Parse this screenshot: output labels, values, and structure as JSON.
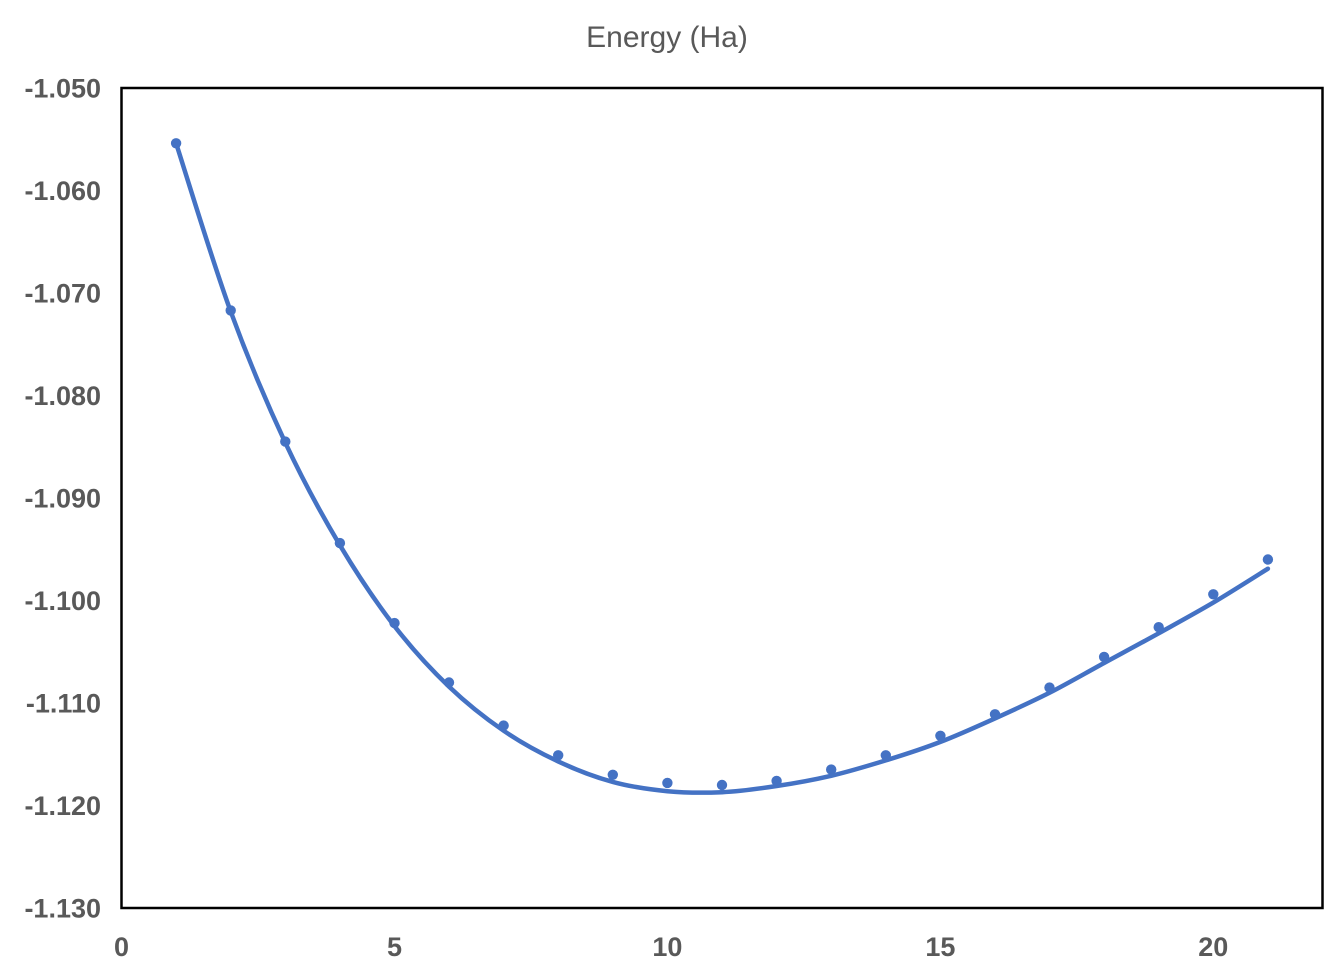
{
  "title": "Energy (Ha)",
  "chart_data": {
    "type": "scatter",
    "title": "Energy (Ha)",
    "xlabel": "",
    "ylabel": "",
    "xlim": [
      0,
      22
    ],
    "ylim": [
      -1.13,
      -1.05
    ],
    "x_ticks": [
      0,
      5,
      10,
      15,
      20
    ],
    "x_tick_labels": [
      "0",
      "5",
      "10",
      "15",
      "20"
    ],
    "y_ticks": [
      -1.05,
      -1.06,
      -1.07,
      -1.08,
      -1.09,
      -1.1,
      -1.11,
      -1.12,
      -1.13
    ],
    "y_tick_labels": [
      "-1.050",
      "-1.060",
      "-1.070",
      "-1.080",
      "-1.090",
      "-1.100",
      "-1.110",
      "-1.120",
      "-1.130"
    ],
    "grid": false,
    "legend": "none",
    "plot_border": true,
    "series": [
      {
        "name": "energy-points",
        "type": "scatter",
        "x": [
          1,
          2,
          3,
          4,
          5,
          6,
          7,
          8,
          9,
          10,
          11,
          12,
          13,
          14,
          15,
          16,
          17,
          18,
          19,
          20,
          21
        ],
        "y": [
          -1.0554,
          -1.0717,
          -1.0845,
          -1.0944,
          -1.1022,
          -1.108,
          -1.1122,
          -1.1151,
          -1.117,
          -1.1178,
          -1.118,
          -1.1176,
          -1.1165,
          -1.1151,
          -1.1132,
          -1.1111,
          -1.1085,
          -1.1055,
          -1.1026,
          -1.0994,
          -1.096
        ]
      },
      {
        "name": "trend-line",
        "type": "line-smooth",
        "x": [
          1,
          2,
          3,
          4,
          5,
          6,
          7,
          8,
          9,
          10,
          11,
          12,
          13,
          14,
          15,
          16,
          17,
          18,
          19,
          20,
          21
        ],
        "y": [
          -1.0554,
          -1.0718,
          -1.0846,
          -1.0946,
          -1.1025,
          -1.1084,
          -1.1127,
          -1.1157,
          -1.1177,
          -1.1186,
          -1.1187,
          -1.1181,
          -1.1171,
          -1.1156,
          -1.1138,
          -1.1115,
          -1.109,
          -1.1061,
          -1.1032,
          -1.1002,
          -1.0969
        ]
      }
    ],
    "colors": {
      "series": "#4472C4",
      "plot_border": "#000000",
      "tick_label": "#595959",
      "title": "#595959",
      "background": "#ffffff"
    }
  }
}
